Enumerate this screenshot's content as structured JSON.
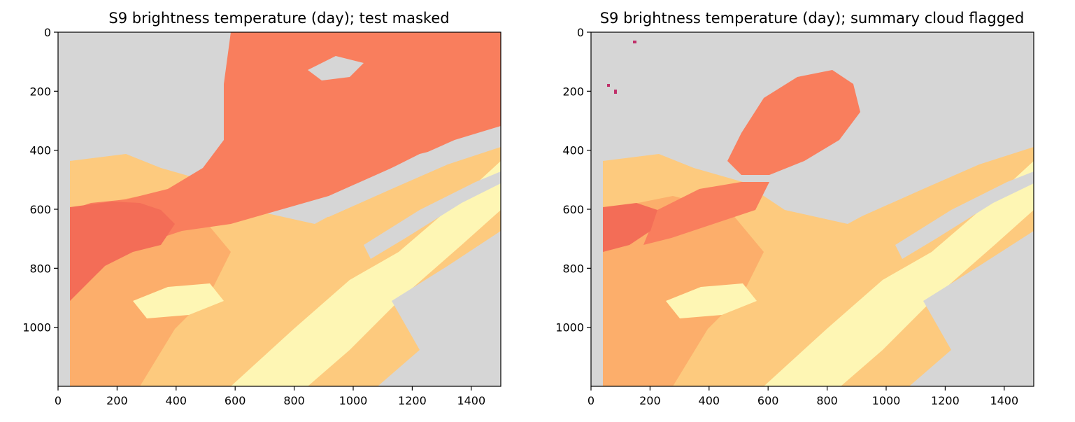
{
  "figure": {
    "colors": {
      "masked": "#d6d6d6",
      "warm_low": "#f06c55",
      "warm_mid": "#fb8d5e",
      "warm_high": "#fdd58a",
      "hot": "#fef9bb",
      "outlier": "#c0306a"
    }
  },
  "chart_data": [
    {
      "type": "heatmap",
      "title": "S9 brightness temperature (day); test masked",
      "xlabel": "",
      "ylabel": "",
      "xlim": [
        0,
        1500
      ],
      "ylim": [
        1200,
        0
      ],
      "xticks": [
        "0",
        "200",
        "400",
        "600",
        "800",
        "1000",
        "1200",
        "1400"
      ],
      "yticks": [
        "0",
        "200",
        "400",
        "600",
        "800",
        "1000"
      ],
      "xtick_values": [
        0,
        200,
        400,
        600,
        800,
        1000,
        1200,
        1400
      ],
      "ytick_values": [
        0,
        200,
        400,
        600,
        800,
        1000
      ],
      "colormap": "Spectral (upper half)",
      "masked_color": "light-grey"
    },
    {
      "type": "heatmap",
      "title": "S9 brightness temperature (day); summary cloud flagged",
      "xlabel": "",
      "ylabel": "",
      "xlim": [
        0,
        1500
      ],
      "ylim": [
        1200,
        0
      ],
      "xticks": [
        "0",
        "200",
        "400",
        "600",
        "800",
        "1000",
        "1200",
        "1400"
      ],
      "yticks": [
        "0",
        "200",
        "400",
        "600",
        "800",
        "1000"
      ],
      "xtick_values": [
        0,
        200,
        400,
        600,
        800,
        1000,
        1200,
        1400
      ],
      "ytick_values": [
        0,
        200,
        400,
        600,
        800,
        1000
      ],
      "colormap": "Spectral (upper half)",
      "masked_color": "light-grey"
    }
  ]
}
